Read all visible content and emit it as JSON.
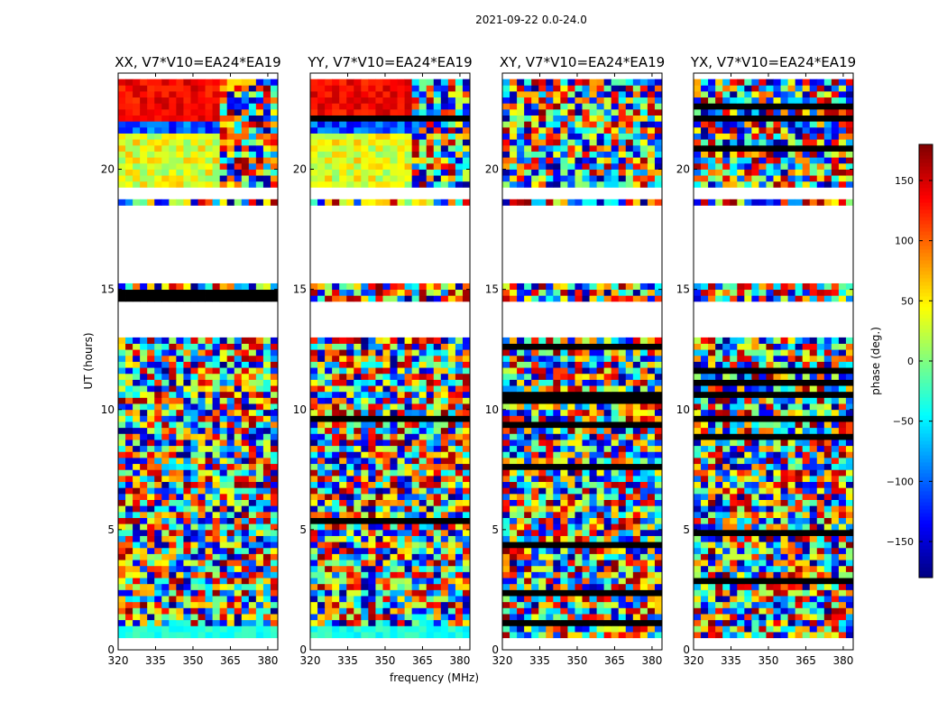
{
  "chart_data": {
    "type": "heatmap",
    "suptitle": "2021-09-22 0.0-24.0",
    "xlabel": "frequency (MHz)",
    "ylabel": "UT (hours)",
    "colorbar_label": "phase (deg.)",
    "colorbar": {
      "range": [
        -180,
        180
      ],
      "ticks": [
        150,
        100,
        50,
        0,
        -50,
        -100,
        -150
      ],
      "tick_labels": [
        "150",
        "100",
        "50",
        "0",
        "−50",
        "−100",
        "−150"
      ],
      "colormap": "jet"
    },
    "xlim": [
      320,
      384
    ],
    "ylim": [
      0,
      24
    ],
    "xticks": [
      320,
      335,
      350,
      365,
      380
    ],
    "yticks": [
      0,
      5,
      10,
      15,
      20
    ],
    "panels": [
      {
        "title": "XX, V7*V10=EA24*EA19",
        "correlation": "XX"
      },
      {
        "title": "YY, V7*V10=EA24*EA19",
        "correlation": "YY"
      },
      {
        "title": "XY, V7*V10=EA24*EA19",
        "correlation": "XY"
      },
      {
        "title": "YX, V7*V10=EA24*EA19",
        "correlation": "YX"
      }
    ],
    "data_gaps_ut_hours": [
      [
        12.9,
        14.4
      ],
      [
        15.2,
        18.4
      ],
      [
        18.7,
        19.3
      ]
    ],
    "flagged_band_mhz": [
      360,
      384
    ]
  }
}
